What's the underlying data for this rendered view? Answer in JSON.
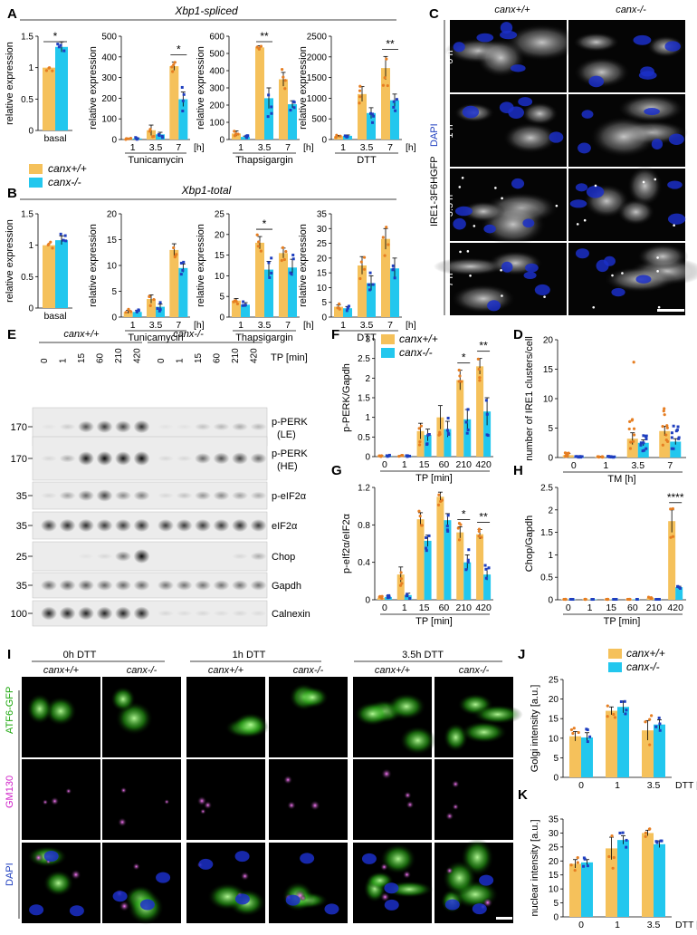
{
  "colors": {
    "wt": "#f5c15b",
    "ko": "#22c7ee",
    "wt_dot": "#e67e22",
    "ko_dot": "#1f3fbf"
  },
  "legend": {
    "wt": "canx+/+",
    "ko": "canx-/-"
  },
  "panel_letters": {
    "A": "A",
    "B": "B",
    "C": "C",
    "D": "D",
    "E": "E",
    "F": "F",
    "G": "G",
    "H": "H",
    "I": "I",
    "J": "J",
    "K": "K"
  },
  "section_titles": {
    "A": "Xbp1-spliced",
    "B": "Xbp1-total"
  },
  "panel_c": {
    "col_labels": [
      "canx+/+",
      "canx-/-"
    ],
    "row_labels": [
      "0 h",
      "1 h",
      "3.5 h",
      "7 h"
    ],
    "side_label_1": "IRE1-3F6HGFP",
    "side_label_2": "DAPI"
  },
  "panel_e": {
    "group_labels": [
      "canx+/+",
      "canx-/-"
    ],
    "tp_labels": [
      "0",
      "1",
      "15",
      "60",
      "210",
      "420",
      "0",
      "1",
      "15",
      "60",
      "210",
      "420"
    ],
    "tp_axis": "TP [min]",
    "mw_labels": [
      "170",
      "170",
      "35",
      "35",
      "25",
      "35",
      "100"
    ],
    "blot_labels": [
      "p-PERK (LE)",
      "p-PERK (HE)",
      "p-eIF2α",
      "eIF2α",
      "Chop",
      "Gapdh",
      "Calnexin"
    ]
  },
  "panel_i": {
    "time_labels": [
      "0h DTT",
      "1h DTT",
      "3.5h DTT"
    ],
    "geno_labels": [
      "canx+/+",
      "canx-/-",
      "canx+/+",
      "canx-/-",
      "canx+/+",
      "canx-/-"
    ],
    "row_labels": [
      "ATF6-GFP",
      "GM130",
      "DAPI"
    ]
  },
  "chart_data": [
    {
      "id": "A1",
      "type": "bar",
      "ylabel": "relative expression",
      "categories": [
        "basal"
      ],
      "xunit": "",
      "ylim": [
        0,
        1.5
      ],
      "yticks": [
        0.0,
        0.5,
        1.0,
        1.5
      ],
      "series": [
        {
          "name": "canx+/+",
          "values": [
            1.0
          ],
          "errors": [
            0.0
          ]
        },
        {
          "name": "canx-/-",
          "values": [
            1.33
          ],
          "errors": [
            0.08
          ]
        }
      ],
      "sig": [
        {
          "index": 0,
          "label": "*"
        }
      ]
    },
    {
      "id": "A2",
      "type": "bar",
      "ylabel": "relative expression",
      "categories": [
        "1",
        "3.5",
        "7"
      ],
      "xunit": "[h]",
      "xtitle": "Tunicamycin",
      "ylim": [
        0,
        500
      ],
      "yticks": [
        0,
        100,
        200,
        300,
        400,
        500
      ],
      "series": [
        {
          "name": "canx+/+",
          "values": [
            3,
            45,
            355
          ],
          "errors": [
            2,
            25,
            20
          ]
        },
        {
          "name": "canx-/-",
          "values": [
            5,
            25,
            195
          ],
          "errors": [
            3,
            10,
            35
          ]
        }
      ],
      "sig": [
        {
          "index": 2,
          "label": "*"
        }
      ]
    },
    {
      "id": "A3",
      "type": "bar",
      "ylabel": "relative expression",
      "categories": [
        "1",
        "3.5",
        "7"
      ],
      "xunit": "[h]",
      "xtitle": "Thapsigargin",
      "ylim": [
        0,
        600
      ],
      "yticks": [
        0,
        100,
        200,
        300,
        400,
        500,
        600
      ],
      "series": [
        {
          "name": "canx+/+",
          "values": [
            35,
            535,
            350
          ],
          "errors": [
            15,
            10,
            40
          ]
        },
        {
          "name": "canx-/-",
          "values": [
            15,
            240,
            205
          ],
          "errors": [
            5,
            60,
            20
          ]
        }
      ],
      "sig": [
        {
          "index": 1,
          "label": "**"
        }
      ]
    },
    {
      "id": "A4",
      "type": "bar",
      "ylabel": "relative expression",
      "categories": [
        "1",
        "3.5",
        "7"
      ],
      "xunit": "[h]",
      "xtitle": "DTT",
      "ylim": [
        0,
        2500
      ],
      "yticks": [
        0,
        500,
        1000,
        1500,
        2000,
        2500
      ],
      "series": [
        {
          "name": "canx+/+",
          "values": [
            80,
            1100,
            1730
          ],
          "errors": [
            20,
            180,
            280
          ]
        },
        {
          "name": "canx-/-",
          "values": [
            90,
            640,
            950
          ],
          "errors": [
            20,
            130,
            150
          ]
        }
      ],
      "sig": [
        {
          "index": 2,
          "label": "**"
        }
      ]
    },
    {
      "id": "B1",
      "type": "bar",
      "ylabel": "relative expression",
      "categories": [
        "basal"
      ],
      "xunit": "",
      "ylim": [
        0,
        1.5
      ],
      "yticks": [
        0.0,
        0.5,
        1.0,
        1.5
      ],
      "series": [
        {
          "name": "canx+/+",
          "values": [
            1.0
          ],
          "errors": [
            0.0
          ]
        },
        {
          "name": "canx-/-",
          "values": [
            1.08
          ],
          "errors": [
            0.07
          ]
        }
      ],
      "sig": []
    },
    {
      "id": "B2",
      "type": "bar",
      "ylabel": "relative expression",
      "categories": [
        "1",
        "3.5",
        "7"
      ],
      "xunit": "[h]",
      "xtitle": "Tunicamycin",
      "ylim": [
        0,
        20
      ],
      "yticks": [
        0,
        5,
        10,
        15,
        20
      ],
      "series": [
        {
          "name": "canx+/+",
          "values": [
            1.0,
            3.5,
            13.0
          ],
          "errors": [
            0.3,
            0.8,
            1.2
          ]
        },
        {
          "name": "canx-/-",
          "values": [
            1.0,
            2.0,
            9.5
          ],
          "errors": [
            0.3,
            0.5,
            0.8
          ]
        }
      ],
      "sig": []
    },
    {
      "id": "B3",
      "type": "bar",
      "ylabel": "relative expression",
      "categories": [
        "1",
        "3.5",
        "7"
      ],
      "xunit": "[h]",
      "xtitle": "Thapsigargin",
      "ylim": [
        0,
        25
      ],
      "yticks": [
        0,
        5,
        10,
        15,
        20,
        25
      ],
      "series": [
        {
          "name": "canx+/+",
          "values": [
            4.0,
            18.0,
            15.5
          ],
          "errors": [
            0.5,
            1.5,
            1.2
          ]
        },
        {
          "name": "canx-/-",
          "values": [
            3.0,
            11.5,
            12.0
          ],
          "errors": [
            0.5,
            2.0,
            2.0
          ]
        }
      ],
      "sig": [
        {
          "index": 1,
          "label": "*"
        }
      ]
    },
    {
      "id": "B4",
      "type": "bar",
      "ylabel": "relative expression",
      "categories": [
        "1",
        "3.5",
        "7"
      ],
      "xunit": "[h]",
      "xtitle": "DTT",
      "ylim": [
        0,
        35
      ],
      "yticks": [
        0,
        5,
        10,
        15,
        20,
        25,
        30,
        35
      ],
      "series": [
        {
          "name": "canx+/+",
          "values": [
            3.5,
            17.5,
            26.5
          ],
          "errors": [
            0.6,
            3.0,
            3.5
          ]
        },
        {
          "name": "canx-/-",
          "values": [
            3.0,
            11.5,
            16.5
          ],
          "errors": [
            0.6,
            2.5,
            3.5
          ]
        }
      ],
      "sig": []
    },
    {
      "id": "F",
      "type": "bar",
      "ylabel": "p-PERK/Gapdh",
      "categories": [
        "0",
        "1",
        "15",
        "60",
        "210",
        "420"
      ],
      "xunit": "",
      "xtitle": "TP [min]",
      "ylim": [
        0,
        3.0
      ],
      "yticks": [
        0.0,
        0.5,
        1.0,
        1.5,
        2.0,
        2.5,
        3.0
      ],
      "series": [
        {
          "name": "canx+/+",
          "values": [
            0.02,
            0.02,
            0.65,
            1.0,
            1.95,
            2.3
          ],
          "errors": [
            0.01,
            0.01,
            0.2,
            0.3,
            0.25,
            0.2
          ]
        },
        {
          "name": "canx-/-",
          "values": [
            0.02,
            0.02,
            0.55,
            0.7,
            0.95,
            1.15
          ],
          "errors": [
            0.01,
            0.01,
            0.15,
            0.2,
            0.25,
            0.35
          ]
        }
      ],
      "sig": [
        {
          "index": 4,
          "label": "*"
        },
        {
          "index": 5,
          "label": "**"
        }
      ]
    },
    {
      "id": "G",
      "type": "bar",
      "ylabel": "p-eIf2α/eIF2α",
      "categories": [
        "0",
        "1",
        "15",
        "60",
        "210",
        "420"
      ],
      "xunit": "",
      "xtitle": "TP [min]",
      "ylim": [
        0,
        1.2
      ],
      "yticks": [
        0,
        0.4,
        0.8,
        1.2
      ],
      "series": [
        {
          "name": "canx+/+",
          "values": [
            0.02,
            0.27,
            0.86,
            1.1,
            0.72,
            0.7
          ],
          "errors": [
            0.01,
            0.08,
            0.07,
            0.05,
            0.06,
            0.05
          ]
        },
        {
          "name": "canx-/-",
          "values": [
            0.03,
            0.05,
            0.63,
            0.85,
            0.4,
            0.27
          ],
          "errors": [
            0.01,
            0.02,
            0.06,
            0.07,
            0.08,
            0.06
          ]
        }
      ],
      "sig": [
        {
          "index": 4,
          "label": "*"
        },
        {
          "index": 5,
          "label": "**"
        }
      ]
    },
    {
      "id": "H",
      "type": "bar",
      "ylabel": "Chop/Gapdh",
      "categories": [
        "0",
        "1",
        "15",
        "60",
        "210",
        "420"
      ],
      "xunit": "",
      "xtitle": "TP [min]",
      "ylim": [
        0,
        2.5
      ],
      "yticks": [
        0.0,
        0.5,
        1.0,
        1.5,
        2.0,
        2.5
      ],
      "series": [
        {
          "name": "canx+/+",
          "values": [
            0.01,
            0.01,
            0.01,
            0.01,
            0.04,
            1.75
          ],
          "errors": [
            0.0,
            0.0,
            0.0,
            0.0,
            0.01,
            0.25
          ]
        },
        {
          "name": "canx-/-",
          "values": [
            0.01,
            0.01,
            0.01,
            0.01,
            0.01,
            0.28
          ],
          "errors": [
            0.0,
            0.0,
            0.0,
            0.0,
            0.0,
            0.02
          ]
        }
      ],
      "sig": [
        {
          "index": 5,
          "label": "****"
        }
      ]
    },
    {
      "id": "D",
      "type": "bar",
      "ylabel": "number of IRE1 clusters/cell",
      "categories": [
        "0",
        "1",
        "3.5",
        "7"
      ],
      "xunit": "",
      "xtitle": "TM [h]",
      "ylim": [
        0,
        20
      ],
      "yticks": [
        0,
        5,
        10,
        15,
        20
      ],
      "series": [
        {
          "name": "canx+/+",
          "values": [
            0.4,
            0.1,
            3.2,
            4.5
          ],
          "errors": [
            0.3,
            0.1,
            1.0,
            0.8
          ]
        },
        {
          "name": "canx-/-",
          "values": [
            0.1,
            0.1,
            2.5,
            2.7
          ],
          "errors": [
            0.1,
            0.1,
            0.5,
            0.5
          ]
        }
      ],
      "sig": []
    },
    {
      "id": "J",
      "type": "bar",
      "ylabel": "Golgi intensity [a.u.]",
      "categories": [
        "0",
        "1",
        "3.5"
      ],
      "xunit": "DTT [h]",
      "ylim": [
        0,
        25
      ],
      "yticks": [
        0,
        5,
        10,
        15,
        20,
        25
      ],
      "series": [
        {
          "name": "canx+/+",
          "values": [
            10.5,
            17.0,
            12.0
          ],
          "errors": [
            1.2,
            1.0,
            2.5
          ]
        },
        {
          "name": "canx-/-",
          "values": [
            10.2,
            18.0,
            13.5
          ],
          "errors": [
            1.2,
            1.5,
            1.2
          ]
        }
      ],
      "sig": []
    },
    {
      "id": "K",
      "type": "bar",
      "ylabel": "nuclear intensity [a.u.]",
      "categories": [
        "0",
        "1",
        "3.5"
      ],
      "xunit": "DTT [h]",
      "ylim": [
        0,
        35
      ],
      "yticks": [
        0,
        5,
        10,
        15,
        20,
        25,
        30,
        35
      ],
      "series": [
        {
          "name": "canx+/+",
          "values": [
            19.0,
            24.5,
            30.0
          ],
          "errors": [
            1.5,
            4.0,
            1.0
          ]
        },
        {
          "name": "canx-/-",
          "values": [
            19.5,
            27.5,
            26.0
          ],
          "errors": [
            1.0,
            1.5,
            1.2
          ]
        }
      ],
      "sig": []
    }
  ]
}
